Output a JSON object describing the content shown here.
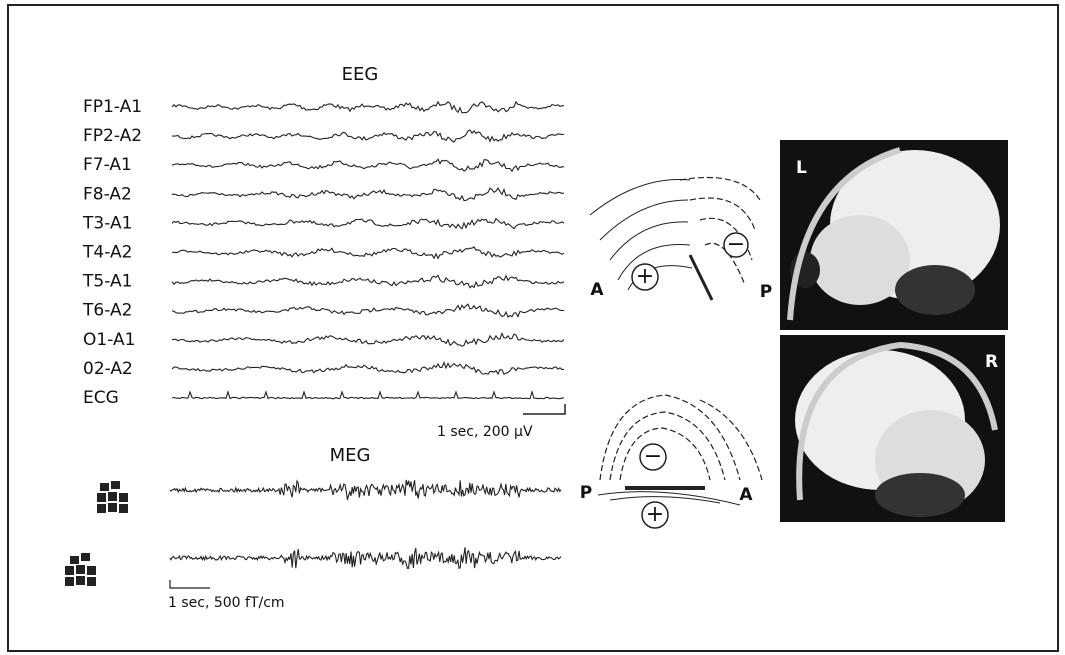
{
  "eeg": {
    "title": "EEG",
    "channels": [
      "FP1-A1",
      "FP2-A2",
      "F7-A1",
      "F8-A2",
      "T3-A1",
      "T4-A2",
      "T5-A1",
      "T6-A2",
      "O1-A1",
      "02-A2",
      "ECG"
    ],
    "scale": "1 sec, 200 μV"
  },
  "meg": {
    "title": "MEG",
    "scale": "1 sec, 500 fT/cm"
  },
  "field_maps": {
    "upper": {
      "left": "A",
      "right": "P",
      "positive": "+",
      "negative": "−"
    },
    "lower": {
      "left": "P",
      "right": "A",
      "positive": "+",
      "negative": "−"
    }
  },
  "mri": {
    "upper": "L",
    "lower": "R"
  }
}
